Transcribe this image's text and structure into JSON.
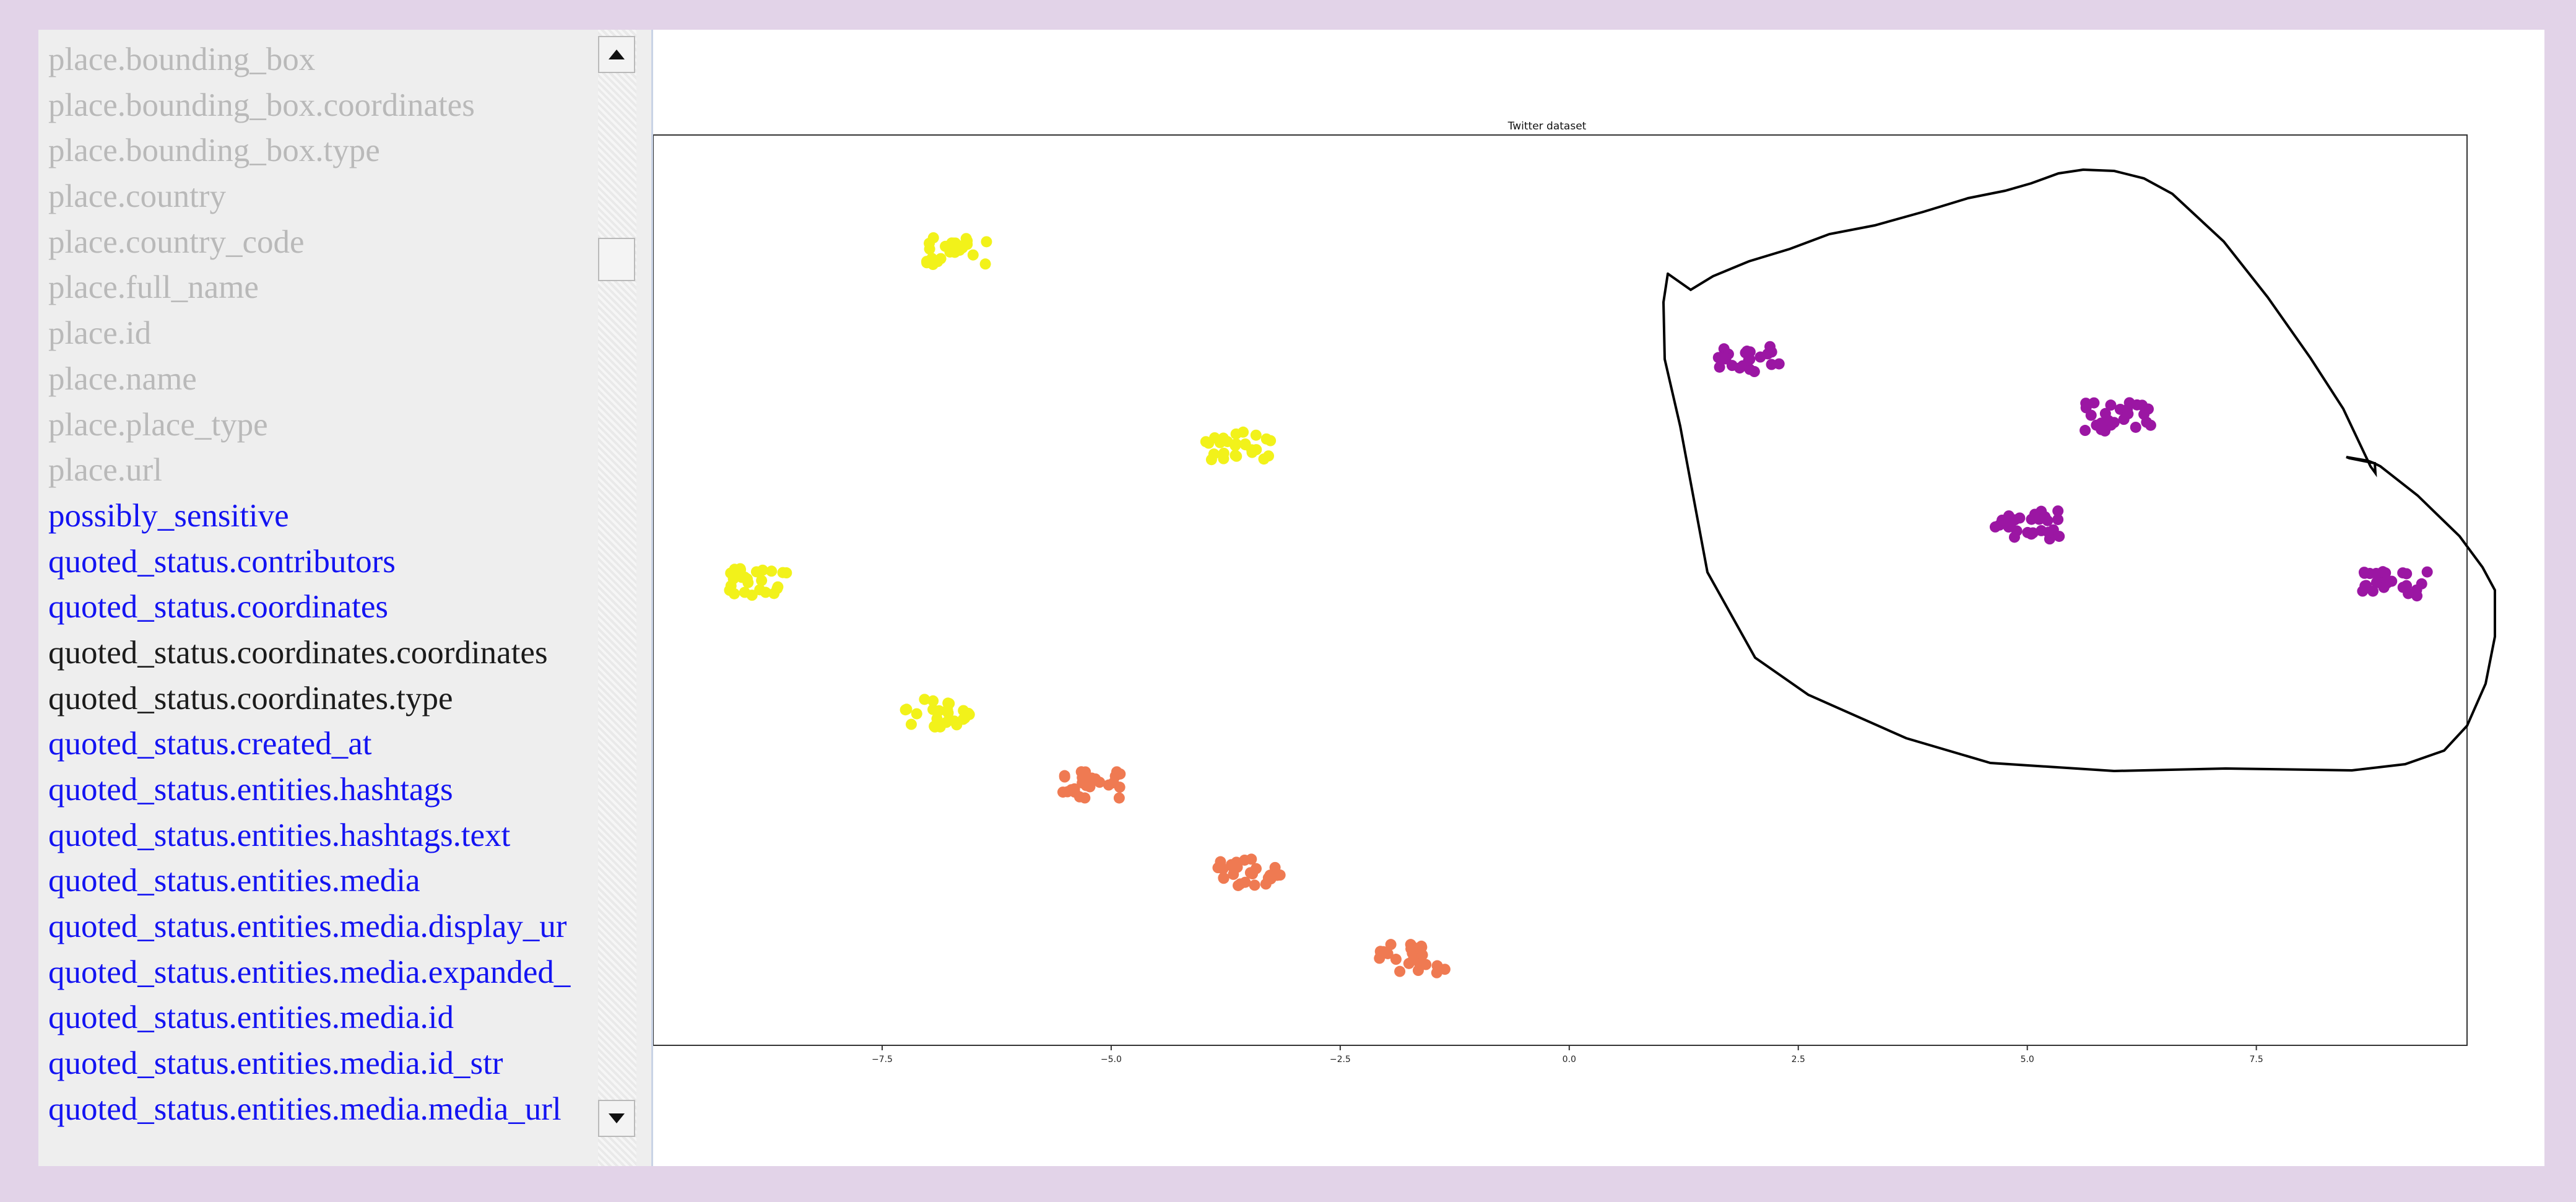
{
  "list": {
    "items": [
      {
        "label": "place.bounding_box",
        "state": "disabled"
      },
      {
        "label": "place.bounding_box.coordinates",
        "state": "disabled"
      },
      {
        "label": "place.bounding_box.type",
        "state": "disabled"
      },
      {
        "label": "place.country",
        "state": "disabled"
      },
      {
        "label": "place.country_code",
        "state": "disabled"
      },
      {
        "label": "place.full_name",
        "state": "disabled"
      },
      {
        "label": "place.id",
        "state": "disabled"
      },
      {
        "label": "place.name",
        "state": "disabled"
      },
      {
        "label": "place.place_type",
        "state": "disabled"
      },
      {
        "label": "place.url",
        "state": "disabled"
      },
      {
        "label": "possibly_sensitive",
        "state": "link"
      },
      {
        "label": "quoted_status.contributors",
        "state": "link"
      },
      {
        "label": "quoted_status.coordinates",
        "state": "link"
      },
      {
        "label": "quoted_status.coordinates.coordinates",
        "state": "normal"
      },
      {
        "label": "quoted_status.coordinates.type",
        "state": "normal"
      },
      {
        "label": "quoted_status.created_at",
        "state": "link"
      },
      {
        "label": "quoted_status.entities.hashtags",
        "state": "link"
      },
      {
        "label": "quoted_status.entities.hashtags.text",
        "state": "link"
      },
      {
        "label": "quoted_status.entities.media",
        "state": "link"
      },
      {
        "label": "quoted_status.entities.media.display_ur",
        "state": "link"
      },
      {
        "label": "quoted_status.entities.media.expanded_",
        "state": "link"
      },
      {
        "label": "quoted_status.entities.media.id",
        "state": "link"
      },
      {
        "label": "quoted_status.entities.media.id_str",
        "state": "link"
      },
      {
        "label": "quoted_status.entities.media.media_url",
        "state": "link"
      }
    ]
  },
  "colors": {
    "disabled_text": "#b9b9b9",
    "link_text": "#1313f2",
    "normal_text": "#1b1b1b",
    "cluster_yellow": "#f2f21a",
    "cluster_orange": "#ef7a52",
    "cluster_purple": "#9b16a3"
  },
  "chart_data": {
    "type": "scatter",
    "title": "Twitter dataset",
    "xlim": [
      -10,
      9.8
    ],
    "x_ticks": [
      -7.5,
      -5.0,
      -2.5,
      0.0,
      2.5,
      5.0,
      7.5
    ],
    "x_tick_labels": [
      "−7.5",
      "−5.0",
      "−2.5",
      "0.0",
      "2.5",
      "5.0",
      "7.5"
    ],
    "annotation": "hand-drawn closed outline encircling the four purple clusters",
    "series": [
      {
        "color": "cluster_yellow",
        "clusters": [
          {
            "x": -6.7,
            "y": 9.4
          },
          {
            "x": -3.6,
            "y": 6.7
          },
          {
            "x": -8.8,
            "y": 4.8
          },
          {
            "x": -6.9,
            "y": 3.0
          }
        ]
      },
      {
        "color": "cluster_orange",
        "clusters": [
          {
            "x": -5.2,
            "y": 2.0
          },
          {
            "x": -3.5,
            "y": 0.8
          },
          {
            "x": -1.7,
            "y": -0.4
          }
        ]
      },
      {
        "color": "cluster_purple",
        "clusters": [
          {
            "x": 2.0,
            "y": 7.9
          },
          {
            "x": 6.0,
            "y": 7.1
          },
          {
            "x": 5.0,
            "y": 5.6
          },
          {
            "x": 9.0,
            "y": 4.8
          }
        ]
      }
    ]
  }
}
